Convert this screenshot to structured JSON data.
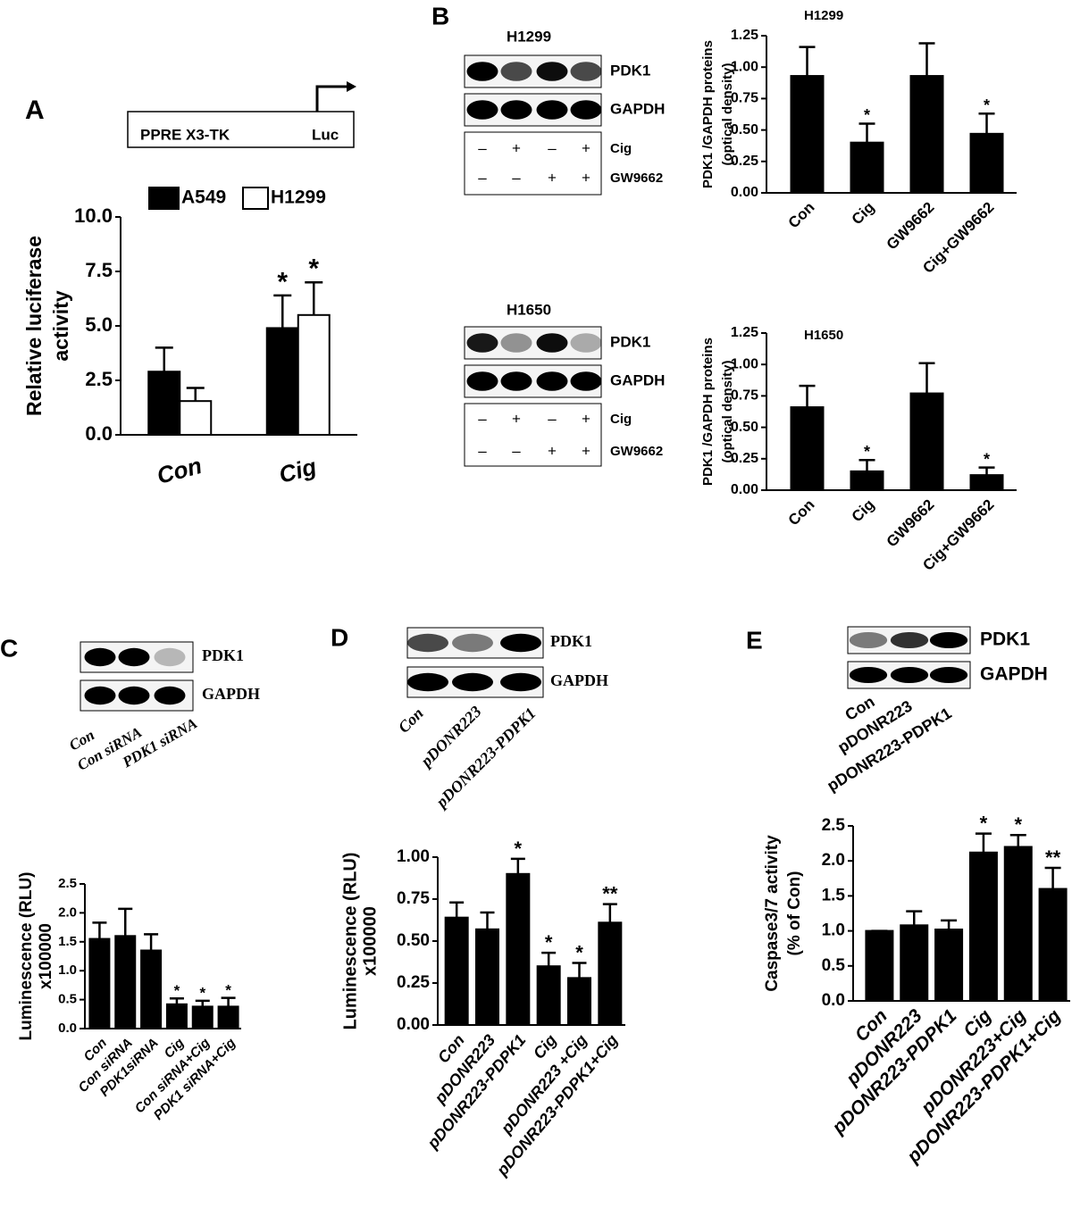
{
  "figure": {
    "panel_labels": [
      "A",
      "B",
      "C",
      "D",
      "E"
    ],
    "construct": {
      "promoter": "PPRE X3-TK",
      "gene": "Luc"
    },
    "blots": [
      {
        "cell_line": "H1299",
        "bands": [
          "PDK1",
          "GAPDH"
        ],
        "treatments": [
          {
            "name": "Cig",
            "signs": [
              "–",
              "+",
              "–",
              "+"
            ]
          },
          {
            "name": "GW9662",
            "signs": [
              "–",
              "–",
              "+",
              "+"
            ]
          }
        ]
      },
      {
        "cell_line": "H1650",
        "bands": [
          "PDK1",
          "GAPDH"
        ],
        "treatments": [
          {
            "name": "Cig",
            "signs": [
              "–",
              "+",
              "–",
              "+"
            ]
          },
          {
            "name": "GW9662",
            "signs": [
              "–",
              "–",
              "+",
              "+"
            ]
          }
        ]
      },
      {
        "bands": [
          "PDK1",
          "GAPDH"
        ],
        "lanes": [
          "Con",
          "Con siRNA",
          "PDK1 siRNA"
        ]
      },
      {
        "bands": [
          "PDK1",
          "GAPDH"
        ],
        "lanes": [
          "Con",
          "pDONR223",
          "pDONR223-PDPK1"
        ]
      },
      {
        "bands": [
          "PDK1",
          "GAPDH"
        ],
        "lanes": [
          "Con",
          "pDONR223",
          "pDONR223-PDPK1"
        ]
      }
    ]
  },
  "chart_data": [
    {
      "type": "bar",
      "categories": [
        "Con",
        "Cig"
      ],
      "ylabel": [
        "Relative luciferase",
        "activity"
      ],
      "series": [
        {
          "name": "A549",
          "color": "#000000",
          "values": [
            2.9,
            4.9
          ],
          "errors": [
            1.1,
            1.5
          ],
          "significance": [
            null,
            "*"
          ]
        },
        {
          "name": "H1299",
          "color": "#ffffff",
          "values": [
            1.55,
            5.5
          ],
          "errors": [
            0.6,
            1.5
          ],
          "significance": [
            null,
            "*"
          ]
        }
      ],
      "ylim": [
        0,
        10
      ],
      "yticks": [
        {
          "value": 0,
          "label": "0.0"
        },
        2.5,
        {
          "value": 5,
          "label": "5.0"
        },
        7.5,
        {
          "value": 10,
          "label": "10.0"
        }
      ],
      "grid": false,
      "legend": "top"
    },
    {
      "type": "bar",
      "title": "H1299",
      "categories": [
        "Con",
        "Cig",
        "GW9662",
        "Cig+GW9662"
      ],
      "ylabel": [
        "PDK1 /GAPDH proteins",
        "(optical density)"
      ],
      "values": [
        0.93,
        0.4,
        0.93,
        0.47
      ],
      "errors": [
        0.23,
        0.15,
        0.26,
        0.16
      ],
      "significance": [
        null,
        "*",
        null,
        "*"
      ],
      "color": "#000000",
      "ylim": [
        0,
        1.25
      ],
      "yticks": [
        {
          "value": 0,
          "label": "0.00"
        },
        0.25,
        {
          "value": 0.5,
          "label": "0.50"
        },
        0.75,
        {
          "value": 1,
          "label": "1.00"
        },
        1.25
      ],
      "grid": false
    },
    {
      "type": "bar",
      "title": "H1650",
      "categories": [
        "Con",
        "Cig",
        "GW9662",
        "Cig+GW9662"
      ],
      "ylabel": [
        "PDK1 /GAPDH proteins",
        "(optical density)"
      ],
      "values": [
        0.66,
        0.15,
        0.77,
        0.12
      ],
      "errors": [
        0.17,
        0.09,
        0.24,
        0.06
      ],
      "significance": [
        null,
        "*",
        null,
        "*"
      ],
      "color": "#000000",
      "ylim": [
        0,
        1.25
      ],
      "yticks": [
        {
          "value": 0,
          "label": "0.00"
        },
        0.25,
        {
          "value": 0.5,
          "label": "0.50"
        },
        0.75,
        {
          "value": 1,
          "label": "1.00"
        },
        1.25
      ],
      "grid": false
    },
    {
      "type": "bar",
      "categories": [
        "Con",
        "Con siRNA",
        "PDK1siRNA",
        "Cig",
        "Con siRNA+Cig",
        "PDK1 siRNA+Cig"
      ],
      "ylabel": [
        "Luminescence (RLU)",
        "x100000"
      ],
      "values": [
        1.55,
        1.6,
        1.35,
        0.42,
        0.38,
        0.38
      ],
      "errors": [
        0.28,
        0.47,
        0.28,
        0.1,
        0.1,
        0.15
      ],
      "significance": [
        null,
        null,
        null,
        "*",
        "*",
        "*"
      ],
      "color": "#000000",
      "ylim": [
        0,
        2.5
      ],
      "yticks": [
        {
          "value": 0,
          "label": "0.0"
        },
        0.5,
        {
          "value": 1,
          "label": "1.0"
        },
        1.5,
        {
          "value": 2,
          "label": "2.0"
        },
        2.5
      ],
      "grid": false
    },
    {
      "type": "bar",
      "categories": [
        "Con",
        "pDONR223",
        "pDONR223-PDPK1",
        "Cig",
        "pDONR223 +Cig",
        "pDONR223-PDPK1+Cig"
      ],
      "ylabel": [
        "Luminescence (RLU)",
        "x100000"
      ],
      "values": [
        0.64,
        0.57,
        0.9,
        0.35,
        0.28,
        0.61
      ],
      "errors": [
        0.09,
        0.1,
        0.09,
        0.08,
        0.09,
        0.11
      ],
      "significance": [
        null,
        null,
        "*",
        "*",
        "*",
        "**"
      ],
      "color": "#000000",
      "ylim": [
        0,
        1
      ],
      "yticks": [
        {
          "value": 0,
          "label": "0.00"
        },
        0.25,
        {
          "value": 0.5,
          "label": "0.50"
        },
        0.75,
        {
          "value": 1,
          "label": "1.00"
        }
      ],
      "grid": false
    },
    {
      "type": "bar",
      "categories": [
        "Con",
        "pDONR223",
        "pDONR223-PDPK1",
        "Cig",
        "pDONR223+Cig",
        "pDONR223-PDPK1+Cig"
      ],
      "ylabel": [
        "Caspase3/7 activity",
        "(% of Con)"
      ],
      "values": [
        1.0,
        1.08,
        1.02,
        2.12,
        2.2,
        1.6
      ],
      "errors": [
        0,
        0.2,
        0.13,
        0.27,
        0.17,
        0.3
      ],
      "significance": [
        null,
        null,
        null,
        "*",
        "*",
        "**"
      ],
      "color": "#000000",
      "ylim": [
        0,
        2.5
      ],
      "yticks": [
        {
          "value": 0,
          "label": "0.0"
        },
        0.5,
        {
          "value": 1,
          "label": "1.0"
        },
        1.5,
        {
          "value": 2,
          "label": "2.0"
        },
        2.5
      ],
      "grid": false
    }
  ]
}
